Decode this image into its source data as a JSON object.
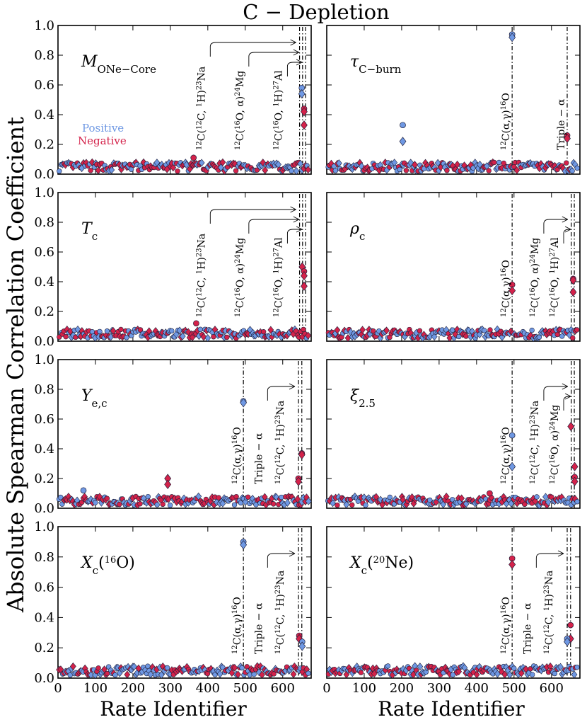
{
  "figure": {
    "title": "C − Depletion",
    "ylabel": "Absolute Spearman Correlation Coefficient",
    "xlabel": "Rate Identifier",
    "legend": {
      "positive": "Positive",
      "negative": "Negative",
      "placement": "panel-1-left"
    },
    "colors": {
      "positive": "#6f98e3",
      "negative": "#d4224a",
      "edge": "#1f1f3a"
    }
  },
  "chart_data": [
    {
      "type": "scatter",
      "id": "p1",
      "label": "M_ONe-Core",
      "label_main": "M",
      "label_sub": "ONe−Core",
      "xlim": [
        0,
        676
      ],
      "ylim": [
        0,
        1
      ],
      "xticks": [
        "0",
        "100",
        "200",
        "300",
        "400",
        "500",
        "600"
      ],
      "yticks": [
        "0.0",
        "0.2",
        "0.4",
        "0.6",
        "0.8",
        "1.0"
      ],
      "background_level": 0.05,
      "vlines": [
        645,
        653,
        661
      ],
      "notable": [
        {
          "x": 651,
          "y": 0.58,
          "sign": "positive",
          "marker": "circle"
        },
        {
          "x": 651,
          "y": 0.54,
          "sign": "positive",
          "marker": "diamond"
        },
        {
          "x": 657,
          "y": 0.44,
          "sign": "negative",
          "marker": "circle"
        },
        {
          "x": 657,
          "y": 0.42,
          "sign": "negative",
          "marker": "diamond"
        },
        {
          "x": 657,
          "y": 0.33,
          "sign": "negative",
          "marker": "diamond"
        },
        {
          "x": 362,
          "y": 0.11,
          "sign": "negative",
          "marker": "circle"
        }
      ],
      "annotations": [
        {
          "text": "12C(12C, 1H)23Na",
          "x": 399,
          "arrow_to": 645
        },
        {
          "text": "12C(16O, α)24Mg",
          "x": 502,
          "arrow_to": 653
        },
        {
          "text": "12C(16O, 1H)27Al",
          "x": 605,
          "arrow_to": 661
        }
      ]
    },
    {
      "type": "scatter",
      "id": "p2",
      "label": "τ_C-burn",
      "label_main": "τ",
      "label_sub": "C−burn",
      "xlim": [
        0,
        676
      ],
      "ylim": [
        0,
        1
      ],
      "xticks": [
        "0",
        "100",
        "200",
        "300",
        "400",
        "500",
        "600"
      ],
      "yticks": [
        "0.0",
        "0.2",
        "0.4",
        "0.6",
        "0.8",
        "1.0"
      ],
      "background_level": 0.05,
      "vlines": [
        495,
        642
      ],
      "notable": [
        {
          "x": 495,
          "y": 0.94,
          "sign": "positive",
          "marker": "circle"
        },
        {
          "x": 495,
          "y": 0.92,
          "sign": "positive",
          "marker": "diamond"
        },
        {
          "x": 203,
          "y": 0.33,
          "sign": "positive",
          "marker": "circle"
        },
        {
          "x": 203,
          "y": 0.22,
          "sign": "positive",
          "marker": "diamond"
        },
        {
          "x": 642,
          "y": 0.26,
          "sign": "negative",
          "marker": "circle"
        },
        {
          "x": 642,
          "y": 0.24,
          "sign": "negative",
          "marker": "diamond"
        }
      ],
      "annotations": [
        {
          "text": "12C(α,γ)16O",
          "x": 495,
          "arrow_to": null
        },
        {
          "text": "Triple − α",
          "x": 642,
          "arrow_to": null
        }
      ]
    },
    {
      "type": "scatter",
      "id": "p3",
      "label": "T_c",
      "label_main": "T",
      "label_sub": "c",
      "xlim": [
        0,
        676
      ],
      "ylim": [
        0,
        1
      ],
      "xticks": [
        "0",
        "100",
        "200",
        "300",
        "400",
        "500",
        "600"
      ],
      "yticks": [
        "0.0",
        "0.2",
        "0.4",
        "0.6",
        "0.8",
        "1.0"
      ],
      "background_level": 0.05,
      "vlines": [
        645,
        653,
        661
      ],
      "notable": [
        {
          "x": 652,
          "y": 0.5,
          "sign": "negative",
          "marker": "diamond"
        },
        {
          "x": 657,
          "y": 0.47,
          "sign": "negative",
          "marker": "circle"
        },
        {
          "x": 657,
          "y": 0.44,
          "sign": "negative",
          "marker": "diamond"
        },
        {
          "x": 657,
          "y": 0.37,
          "sign": "negative",
          "marker": "diamond"
        },
        {
          "x": 369,
          "y": 0.12,
          "sign": "negative",
          "marker": "circle"
        }
      ],
      "annotations": [
        {
          "text": "12C(12C, 1H)23Na",
          "x": 399,
          "arrow_to": 645
        },
        {
          "text": "12C(16O, α)24Mg",
          "x": 502,
          "arrow_to": 653
        },
        {
          "text": "12C(16O, 1H)27Al",
          "x": 605,
          "arrow_to": 661
        }
      ]
    },
    {
      "type": "scatter",
      "id": "p4",
      "label": "ρ_c",
      "label_main": "ρ",
      "label_sub": "c",
      "xlim": [
        0,
        676
      ],
      "ylim": [
        0,
        1
      ],
      "xticks": [
        "0",
        "100",
        "200",
        "300",
        "400",
        "500",
        "600"
      ],
      "yticks": [
        "0.0",
        "0.2",
        "0.4",
        "0.6",
        "0.8",
        "1.0"
      ],
      "background_level": 0.05,
      "vlines": [
        495,
        653,
        661
      ],
      "notable": [
        {
          "x": 495,
          "y": 0.38,
          "sign": "negative",
          "marker": "circle"
        },
        {
          "x": 495,
          "y": 0.34,
          "sign": "negative",
          "marker": "diamond"
        },
        {
          "x": 658,
          "y": 0.42,
          "sign": "negative",
          "marker": "circle"
        },
        {
          "x": 658,
          "y": 0.41,
          "sign": "negative",
          "marker": "diamond"
        },
        {
          "x": 658,
          "y": 0.33,
          "sign": "negative",
          "marker": "diamond"
        }
      ],
      "annotations": [
        {
          "text": "12C(α,γ)16O",
          "x": 495,
          "arrow_to": null
        },
        {
          "text": "12C(16O, α)24Mg",
          "x": 572,
          "arrow_to": 653
        },
        {
          "text": "12C(16O, 1H)27Al",
          "x": 625,
          "arrow_to": 661
        }
      ]
    },
    {
      "type": "scatter",
      "id": "p5",
      "label": "Y_e,c",
      "label_main": "Y",
      "label_sub": "e,c",
      "xlim": [
        0,
        676
      ],
      "ylim": [
        0,
        1
      ],
      "xticks": [
        "0",
        "100",
        "200",
        "300",
        "400",
        "500",
        "600"
      ],
      "yticks": [
        "0.0",
        "0.2",
        "0.4",
        "0.6",
        "0.8",
        "1.0"
      ],
      "background_level": 0.05,
      "vlines": [
        495,
        642,
        651
      ],
      "notable": [
        {
          "x": 495,
          "y": 0.72,
          "sign": "positive",
          "marker": "circle"
        },
        {
          "x": 495,
          "y": 0.71,
          "sign": "positive",
          "marker": "diamond"
        },
        {
          "x": 651,
          "y": 0.37,
          "sign": "negative",
          "marker": "circle"
        },
        {
          "x": 651,
          "y": 0.36,
          "sign": "negative",
          "marker": "diamond"
        },
        {
          "x": 642,
          "y": 0.2,
          "sign": "negative",
          "marker": "circle"
        },
        {
          "x": 642,
          "y": 0.18,
          "sign": "negative",
          "marker": "diamond"
        },
        {
          "x": 293,
          "y": 0.2,
          "sign": "negative",
          "marker": "diamond"
        },
        {
          "x": 293,
          "y": 0.16,
          "sign": "negative",
          "marker": "diamond"
        },
        {
          "x": 68,
          "y": 0.12,
          "sign": "positive",
          "marker": "circle"
        }
      ],
      "annotations": [
        {
          "text": "12C(α,γ)16O",
          "x": 495,
          "arrow_to": null
        },
        {
          "text": "Triple − α",
          "x": 552,
          "arrow_to": 642
        },
        {
          "text": "12C(12C, 1H)23Na",
          "x": 610,
          "arrow_to": null
        }
      ]
    },
    {
      "type": "scatter",
      "id": "p6",
      "label": "ξ_2.5",
      "label_main": "ξ",
      "label_sub": "2.5",
      "xlim": [
        0,
        676
      ],
      "ylim": [
        0,
        1
      ],
      "xticks": [
        "0",
        "100",
        "200",
        "300",
        "400",
        "500",
        "600"
      ],
      "yticks": [
        "0.0",
        "0.2",
        "0.4",
        "0.6",
        "0.8",
        "1.0"
      ],
      "background_level": 0.05,
      "vlines": [
        495,
        653,
        661
      ],
      "notable": [
        {
          "x": 495,
          "y": 0.49,
          "sign": "positive",
          "marker": "circle"
        },
        {
          "x": 495,
          "y": 0.28,
          "sign": "positive",
          "marker": "diamond"
        },
        {
          "x": 652,
          "y": 0.55,
          "sign": "negative",
          "marker": "diamond"
        },
        {
          "x": 662,
          "y": 0.28,
          "sign": "negative",
          "marker": "diamond"
        },
        {
          "x": 662,
          "y": 0.21,
          "sign": "negative",
          "marker": "circle"
        },
        {
          "x": 662,
          "y": 0.18,
          "sign": "negative",
          "marker": "diamond"
        },
        {
          "x": 435,
          "y": 0.1,
          "sign": "negative",
          "marker": "circle"
        }
      ],
      "annotations": [
        {
          "text": "12C(α,γ)16O",
          "x": 495,
          "arrow_to": null
        },
        {
          "text": "12C(12C, 1H)23Na",
          "x": 572,
          "arrow_to": 653
        },
        {
          "text": "12C(16O, α)24Mg",
          "x": 625,
          "arrow_to": 661
        }
      ]
    },
    {
      "type": "scatter",
      "id": "p7",
      "label": "X_c(16O)",
      "label_main": "X",
      "label_sub": "c",
      "label_tail": "(16O)",
      "xlim": [
        0,
        676
      ],
      "ylim": [
        0,
        1
      ],
      "xticks": [
        "0",
        "100",
        "200",
        "300",
        "400",
        "500",
        "600"
      ],
      "yticks": [
        "0.0",
        "0.2",
        "0.4",
        "0.6",
        "0.8",
        "1.0"
      ],
      "background_level": 0.05,
      "vlines": [
        495,
        642,
        651
      ],
      "notable": [
        {
          "x": 495,
          "y": 0.9,
          "sign": "positive",
          "marker": "circle"
        },
        {
          "x": 495,
          "y": 0.88,
          "sign": "positive",
          "marker": "diamond"
        },
        {
          "x": 644,
          "y": 0.28,
          "sign": "negative",
          "marker": "circle"
        },
        {
          "x": 644,
          "y": 0.26,
          "sign": "negative",
          "marker": "diamond"
        },
        {
          "x": 652,
          "y": 0.24,
          "sign": "positive",
          "marker": "circle"
        },
        {
          "x": 652,
          "y": 0.21,
          "sign": "positive",
          "marker": "diamond"
        }
      ],
      "annotations": [
        {
          "text": "12C(α,γ)16O",
          "x": 495,
          "arrow_to": null
        },
        {
          "text": "Triple − α",
          "x": 552,
          "arrow_to": 642
        },
        {
          "text": "12C(12C, 1H)23Na",
          "x": 610,
          "arrow_to": null
        }
      ]
    },
    {
      "type": "scatter",
      "id": "p8",
      "label": "X_c(20Ne)",
      "label_main": "X",
      "label_sub": "c",
      "label_tail": "(20Ne)",
      "xlim": [
        0,
        676
      ],
      "ylim": [
        0,
        1
      ],
      "xticks": [
        "0",
        "100",
        "200",
        "300",
        "400",
        "500",
        "600"
      ],
      "yticks": [
        "0.0",
        "0.2",
        "0.4",
        "0.6",
        "0.8",
        "1.0"
      ],
      "background_level": 0.05,
      "vlines": [
        495,
        642,
        651
      ],
      "notable": [
        {
          "x": 495,
          "y": 0.79,
          "sign": "negative",
          "marker": "circle"
        },
        {
          "x": 495,
          "y": 0.75,
          "sign": "negative",
          "marker": "diamond"
        },
        {
          "x": 651,
          "y": 0.35,
          "sign": "negative",
          "marker": "circle"
        },
        {
          "x": 651,
          "y": 0.26,
          "sign": "negative",
          "marker": "diamond"
        },
        {
          "x": 642,
          "y": 0.26,
          "sign": "positive",
          "marker": "circle"
        },
        {
          "x": 642,
          "y": 0.24,
          "sign": "positive",
          "marker": "diamond"
        }
      ],
      "annotations": [
        {
          "text": "12C(α,γ)16O",
          "x": 495,
          "arrow_to": null
        },
        {
          "text": "Triple − α",
          "x": 552,
          "arrow_to": 642
        },
        {
          "text": "12C(12C, 1H)23Na",
          "x": 610,
          "arrow_to": null
        }
      ]
    }
  ]
}
